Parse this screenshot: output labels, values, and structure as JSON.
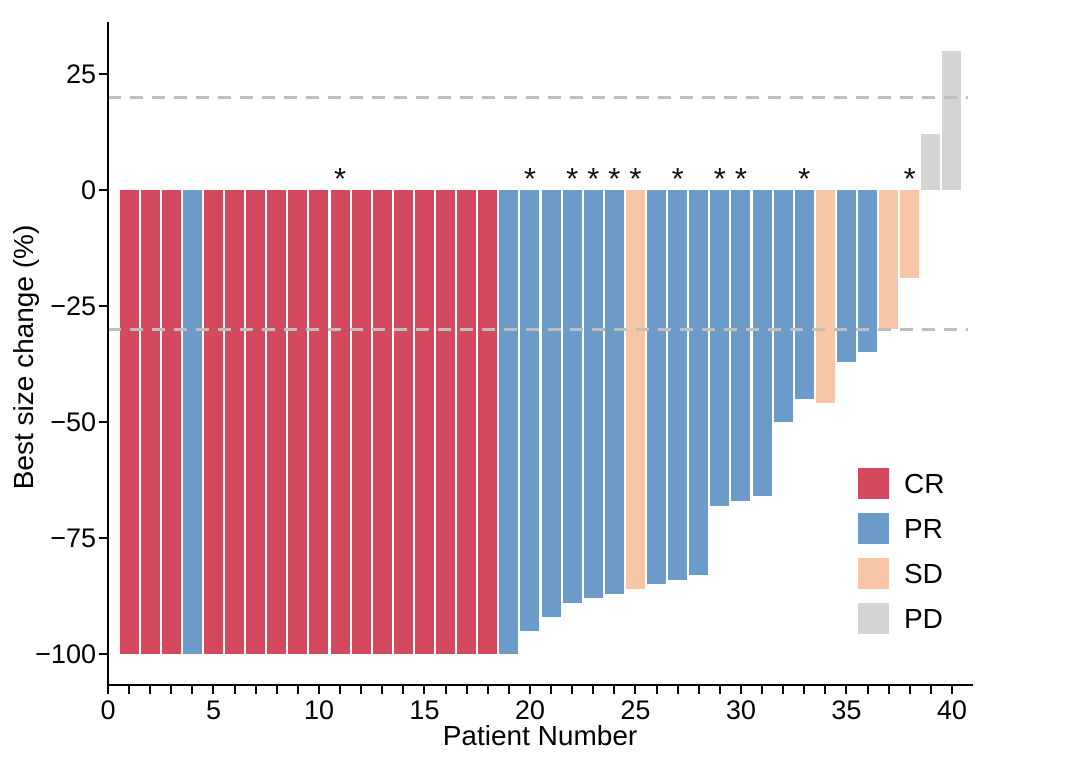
{
  "chart_data": {
    "type": "bar",
    "subtype": "waterfall",
    "title": "",
    "xlabel": "Patient Number",
    "ylabel": "Best size change (%)",
    "xlim": [
      0,
      41
    ],
    "ylim": [
      -107,
      33
    ],
    "x_major_tick_labels": [
      0,
      5,
      10,
      15,
      20,
      25,
      30,
      35,
      40
    ],
    "x_minor_tick_step": 1,
    "y_tick_values": [
      25,
      0,
      -25,
      -50,
      -75,
      -100
    ],
    "grid": "off",
    "reference_lines": [
      {
        "value": 20,
        "style": "dashed",
        "color": "#bebebe"
      },
      {
        "value": -30,
        "style": "dashed",
        "color": "#bebebe"
      }
    ],
    "annotation_symbol": "*",
    "legend": {
      "position": "inside-right",
      "entries": [
        {
          "label": "CR",
          "color": "#d5495f"
        },
        {
          "label": "PR",
          "color": "#6c9bc9"
        },
        {
          "label": "SD",
          "color": "#f7c6a6"
        },
        {
          "label": "PD",
          "color": "#d4d4d4"
        }
      ]
    },
    "bars": [
      {
        "patient": 1,
        "value": -100,
        "response": "CR",
        "star": false
      },
      {
        "patient": 2,
        "value": -100,
        "response": "CR",
        "star": false
      },
      {
        "patient": 3,
        "value": -100,
        "response": "CR",
        "star": false
      },
      {
        "patient": 4,
        "value": -100,
        "response": "PR",
        "star": false
      },
      {
        "patient": 5,
        "value": -100,
        "response": "CR",
        "star": false
      },
      {
        "patient": 6,
        "value": -100,
        "response": "CR",
        "star": false
      },
      {
        "patient": 7,
        "value": -100,
        "response": "CR",
        "star": false
      },
      {
        "patient": 8,
        "value": -100,
        "response": "CR",
        "star": false
      },
      {
        "patient": 9,
        "value": -100,
        "response": "CR",
        "star": false
      },
      {
        "patient": 10,
        "value": -100,
        "response": "CR",
        "star": false
      },
      {
        "patient": 11,
        "value": -100,
        "response": "CR",
        "star": true
      },
      {
        "patient": 12,
        "value": -100,
        "response": "CR",
        "star": false
      },
      {
        "patient": 13,
        "value": -100,
        "response": "CR",
        "star": false
      },
      {
        "patient": 14,
        "value": -100,
        "response": "CR",
        "star": false
      },
      {
        "patient": 15,
        "value": -100,
        "response": "CR",
        "star": false
      },
      {
        "patient": 16,
        "value": -100,
        "response": "CR",
        "star": false
      },
      {
        "patient": 17,
        "value": -100,
        "response": "CR",
        "star": false
      },
      {
        "patient": 18,
        "value": -100,
        "response": "CR",
        "star": false
      },
      {
        "patient": 19,
        "value": -100,
        "response": "PR",
        "star": false
      },
      {
        "patient": 20,
        "value": -95,
        "response": "PR",
        "star": true
      },
      {
        "patient": 21,
        "value": -92,
        "response": "PR",
        "star": false
      },
      {
        "patient": 22,
        "value": -89,
        "response": "PR",
        "star": true
      },
      {
        "patient": 23,
        "value": -88,
        "response": "PR",
        "star": true
      },
      {
        "patient": 24,
        "value": -87,
        "response": "PR",
        "star": true
      },
      {
        "patient": 25,
        "value": -86,
        "response": "SD",
        "star": true
      },
      {
        "patient": 26,
        "value": -85,
        "response": "PR",
        "star": false
      },
      {
        "patient": 27,
        "value": -84,
        "response": "PR",
        "star": true
      },
      {
        "patient": 28,
        "value": -83,
        "response": "PR",
        "star": false
      },
      {
        "patient": 29,
        "value": -68,
        "response": "PR",
        "star": true
      },
      {
        "patient": 30,
        "value": -67,
        "response": "PR",
        "star": true
      },
      {
        "patient": 31,
        "value": -66,
        "response": "PR",
        "star": false
      },
      {
        "patient": 32,
        "value": -50,
        "response": "PR",
        "star": false
      },
      {
        "patient": 33,
        "value": -45,
        "response": "PR",
        "star": true
      },
      {
        "patient": 34,
        "value": -46,
        "response": "SD",
        "star": false
      },
      {
        "patient": 35,
        "value": -37,
        "response": "PR",
        "star": false
      },
      {
        "patient": 36,
        "value": -35,
        "response": "PR",
        "star": false
      },
      {
        "patient": 37,
        "value": -30,
        "response": "SD",
        "star": false
      },
      {
        "patient": 38,
        "value": -19,
        "response": "SD",
        "star": true
      },
      {
        "patient": 39,
        "value": 12,
        "response": "PD",
        "star": false
      },
      {
        "patient": 40,
        "value": 30,
        "response": "PD",
        "star": false
      }
    ]
  }
}
